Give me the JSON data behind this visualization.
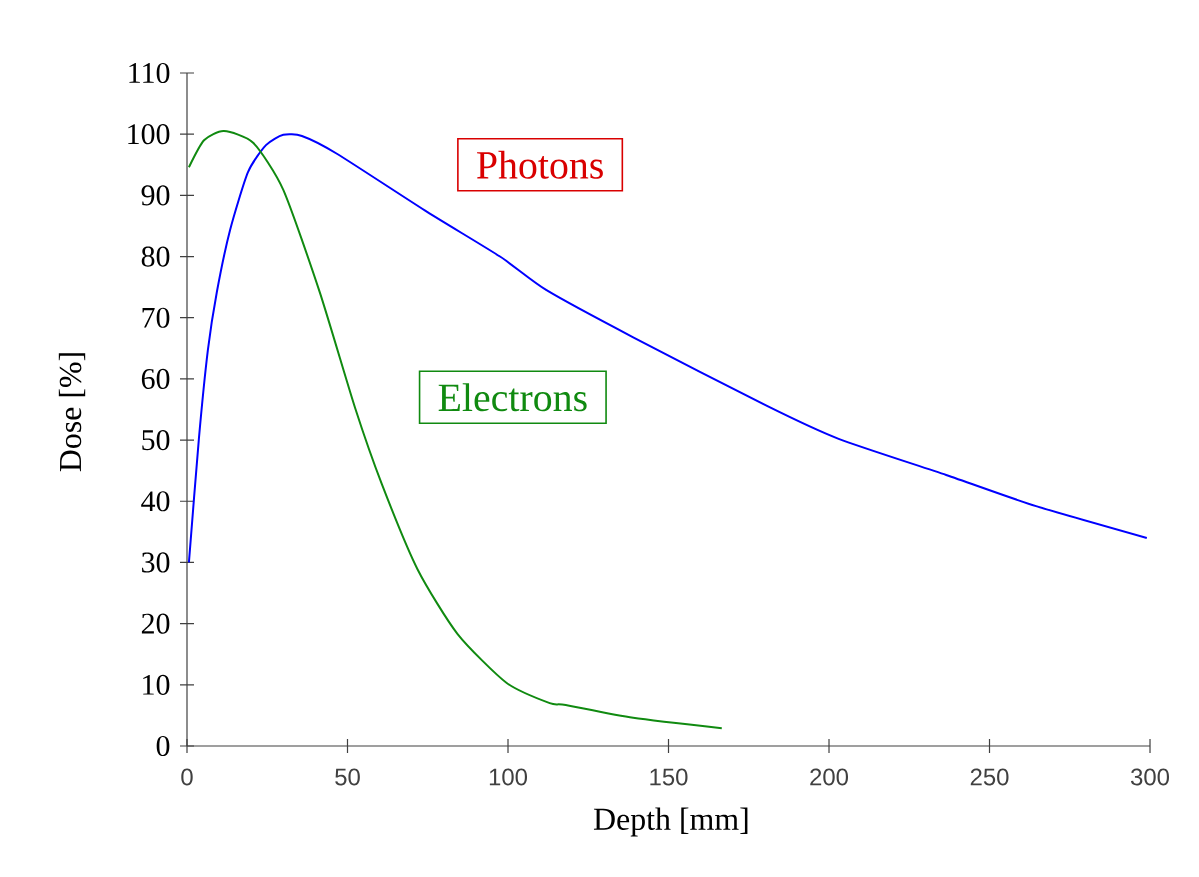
{
  "chart_data": {
    "type": "line",
    "xlabel": "Depth [mm]",
    "ylabel": "Dose [%]",
    "xlim": [
      0,
      300
    ],
    "ylim": [
      0,
      110
    ],
    "xticks": [
      0,
      50,
      100,
      150,
      200,
      250,
      300
    ],
    "yticks": [
      0,
      10,
      20,
      30,
      40,
      50,
      60,
      70,
      80,
      90,
      100,
      110
    ],
    "legend": false,
    "series": [
      {
        "name": "Photons",
        "color": "#0000ff",
        "x": [
          0.6,
          3.7,
          6.5,
          9.3,
          13.4,
          19,
          24.6,
          30,
          35.8,
          46.7,
          74.8,
          97.5,
          112,
          139,
          181,
          203,
          236.5,
          264.5,
          299
        ],
        "values": [
          30,
          50.2,
          64.7,
          74.2,
          84.3,
          93.8,
          98.2,
          99.9,
          99.7,
          96.8,
          87.3,
          80,
          74.5,
          66.8,
          55.5,
          50.2,
          44.3,
          39.2,
          34
        ]
      },
      {
        "name": "Electrons",
        "color": "#108a10",
        "x": [
          0.6,
          5.3,
          11.5,
          20.6,
          30,
          41.4,
          52.4,
          60.7,
          71.8,
          84.3,
          99.6,
          113,
          118,
          139,
          166.6
        ],
        "values": [
          94.6,
          99,
          100.5,
          98.6,
          90.9,
          74.1,
          55.2,
          42.8,
          28.9,
          18.3,
          10.3,
          7,
          6.7,
          4.6,
          2.9
        ]
      }
    ]
  }
}
